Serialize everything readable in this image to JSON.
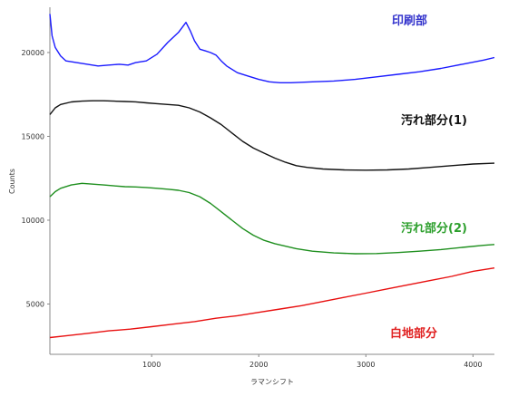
{
  "chart_data": {
    "type": "line",
    "title": "",
    "xlabel": "ラマンシフト",
    "ylabel": "Counts",
    "xlim": [
      50,
      4200
    ],
    "ylim": [
      2000,
      22700
    ],
    "xticks": [
      1000,
      2000,
      3000,
      4000
    ],
    "yticks": [
      5000,
      10000,
      15000,
      20000
    ],
    "grid": false,
    "legend": "labels placed beside each line",
    "series": [
      {
        "name": "印刷部",
        "color": "#1a1aff",
        "points": [
          [
            50,
            22300
          ],
          [
            70,
            21000
          ],
          [
            100,
            20300
          ],
          [
            150,
            19800
          ],
          [
            200,
            19500
          ],
          [
            300,
            19400
          ],
          [
            400,
            19300
          ],
          [
            500,
            19200
          ],
          [
            600,
            19250
          ],
          [
            700,
            19300
          ],
          [
            780,
            19250
          ],
          [
            850,
            19400
          ],
          [
            950,
            19500
          ],
          [
            1050,
            19900
          ],
          [
            1150,
            20600
          ],
          [
            1250,
            21200
          ],
          [
            1320,
            21800
          ],
          [
            1360,
            21300
          ],
          [
            1400,
            20700
          ],
          [
            1450,
            20200
          ],
          [
            1500,
            20100
          ],
          [
            1550,
            20000
          ],
          [
            1600,
            19850
          ],
          [
            1650,
            19500
          ],
          [
            1700,
            19200
          ],
          [
            1800,
            18800
          ],
          [
            1900,
            18600
          ],
          [
            2000,
            18400
          ],
          [
            2100,
            18250
          ],
          [
            2200,
            18200
          ],
          [
            2300,
            18200
          ],
          [
            2500,
            18250
          ],
          [
            2700,
            18300
          ],
          [
            2900,
            18400
          ],
          [
            3100,
            18550
          ],
          [
            3300,
            18700
          ],
          [
            3500,
            18850
          ],
          [
            3700,
            19050
          ],
          [
            3900,
            19300
          ],
          [
            4100,
            19550
          ],
          [
            4200,
            19700
          ]
        ]
      },
      {
        "name": "汚れ部分(1)",
        "color": "#111111",
        "points": [
          [
            50,
            16300
          ],
          [
            100,
            16700
          ],
          [
            150,
            16900
          ],
          [
            250,
            17050
          ],
          [
            350,
            17100
          ],
          [
            450,
            17120
          ],
          [
            550,
            17120
          ],
          [
            650,
            17100
          ],
          [
            750,
            17080
          ],
          [
            850,
            17060
          ],
          [
            950,
            17000
          ],
          [
            1050,
            16950
          ],
          [
            1150,
            16900
          ],
          [
            1250,
            16850
          ],
          [
            1350,
            16700
          ],
          [
            1450,
            16450
          ],
          [
            1550,
            16100
          ],
          [
            1650,
            15700
          ],
          [
            1750,
            15200
          ],
          [
            1850,
            14700
          ],
          [
            1950,
            14300
          ],
          [
            2050,
            14000
          ],
          [
            2150,
            13700
          ],
          [
            2250,
            13450
          ],
          [
            2350,
            13250
          ],
          [
            2450,
            13150
          ],
          [
            2600,
            13050
          ],
          [
            2800,
            13000
          ],
          [
            3000,
            12980
          ],
          [
            3200,
            13000
          ],
          [
            3400,
            13050
          ],
          [
            3600,
            13150
          ],
          [
            3800,
            13250
          ],
          [
            4000,
            13350
          ],
          [
            4200,
            13400
          ]
        ]
      },
      {
        "name": "汚れ部分(2)",
        "color": "#1e8f1e",
        "points": [
          [
            50,
            11400
          ],
          [
            100,
            11700
          ],
          [
            150,
            11900
          ],
          [
            250,
            12100
          ],
          [
            350,
            12200
          ],
          [
            450,
            12150
          ],
          [
            550,
            12100
          ],
          [
            650,
            12050
          ],
          [
            750,
            12000
          ],
          [
            850,
            11980
          ],
          [
            950,
            11950
          ],
          [
            1050,
            11900
          ],
          [
            1150,
            11850
          ],
          [
            1250,
            11780
          ],
          [
            1350,
            11650
          ],
          [
            1450,
            11400
          ],
          [
            1550,
            11000
          ],
          [
            1650,
            10500
          ],
          [
            1750,
            10000
          ],
          [
            1850,
            9500
          ],
          [
            1950,
            9100
          ],
          [
            2050,
            8800
          ],
          [
            2150,
            8600
          ],
          [
            2250,
            8450
          ],
          [
            2350,
            8300
          ],
          [
            2500,
            8150
          ],
          [
            2700,
            8050
          ],
          [
            2900,
            8000
          ],
          [
            3100,
            8010
          ],
          [
            3300,
            8070
          ],
          [
            3500,
            8150
          ],
          [
            3700,
            8250
          ],
          [
            3900,
            8380
          ],
          [
            4100,
            8500
          ],
          [
            4200,
            8550
          ]
        ]
      },
      {
        "name": "白地部分",
        "color": "#e81010",
        "points": [
          [
            50,
            3000
          ],
          [
            200,
            3100
          ],
          [
            400,
            3250
          ],
          [
            600,
            3400
          ],
          [
            800,
            3500
          ],
          [
            1000,
            3650
          ],
          [
            1200,
            3800
          ],
          [
            1400,
            3950
          ],
          [
            1600,
            4150
          ],
          [
            1800,
            4300
          ],
          [
            2000,
            4500
          ],
          [
            2200,
            4700
          ],
          [
            2400,
            4900
          ],
          [
            2600,
            5150
          ],
          [
            2800,
            5400
          ],
          [
            3000,
            5650
          ],
          [
            3200,
            5900
          ],
          [
            3400,
            6150
          ],
          [
            3600,
            6400
          ],
          [
            3800,
            6650
          ],
          [
            4000,
            6950
          ],
          [
            4200,
            7150
          ]
        ]
      }
    ]
  }
}
